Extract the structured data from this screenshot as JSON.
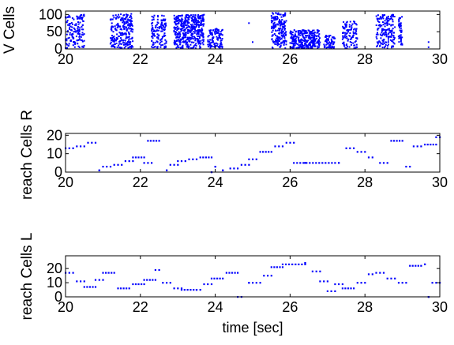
{
  "colors": {
    "marker": "#0000ff",
    "axis": "#000000",
    "background": "#ffffff"
  },
  "chart_data": [
    {
      "type": "scatter",
      "xlabel": "",
      "ylabel": "V Cells",
      "xlim": [
        20,
        30
      ],
      "ylim": [
        0,
        110
      ],
      "xticks": [
        "20",
        "22",
        "24",
        "26",
        "28",
        "30"
      ],
      "yticks": [
        "0",
        "50",
        "100"
      ],
      "grid": false,
      "clusters": [
        {
          "x": [
            20.0,
            20.5
          ],
          "y": [
            2,
            100
          ],
          "count": 140
        },
        {
          "x": [
            21.2,
            21.8
          ],
          "y": [
            2,
            102
          ],
          "count": 240
        },
        {
          "x": [
            22.3,
            22.7
          ],
          "y": [
            2,
            100
          ],
          "count": 130
        },
        {
          "x": [
            22.9,
            23.7
          ],
          "y": [
            2,
            100
          ],
          "count": 420
        },
        {
          "x": [
            23.8,
            24.2
          ],
          "y": [
            2,
            60
          ],
          "count": 110
        },
        {
          "x": [
            25.5,
            25.9
          ],
          "y": [
            2,
            105
          ],
          "count": 180
        },
        {
          "x": [
            26.0,
            26.8
          ],
          "y": [
            2,
            55
          ],
          "count": 280
        },
        {
          "x": [
            26.9,
            27.2
          ],
          "y": [
            2,
            40
          ],
          "count": 60
        },
        {
          "x": [
            27.4,
            27.8
          ],
          "y": [
            2,
            80
          ],
          "count": 100
        },
        {
          "x": [
            28.3,
            28.8
          ],
          "y": [
            2,
            100
          ],
          "count": 160
        },
        {
          "x": [
            28.9,
            29.0
          ],
          "y": [
            10,
            95
          ],
          "count": 40
        }
      ],
      "extra_points": [
        {
          "x": 24.9,
          "y": 75
        },
        {
          "x": 25.0,
          "y": 20
        },
        {
          "x": 29.7,
          "y": 20
        },
        {
          "x": 29.7,
          "y": 5
        }
      ]
    },
    {
      "type": "scatter",
      "xlabel": "",
      "ylabel": "reach Cells R",
      "xlim": [
        20,
        30
      ],
      "ylim": [
        0,
        21
      ],
      "xticks": [
        "20",
        "22",
        "24",
        "26",
        "28",
        "30"
      ],
      "yticks": [
        "0",
        "10",
        "20"
      ],
      "grid": false,
      "segments": [
        [
          20.0,
          20.2,
          13
        ],
        [
          20.3,
          20.5,
          14
        ],
        [
          20.6,
          20.8,
          16
        ],
        [
          20.9,
          20.9,
          1
        ],
        [
          21.0,
          21.2,
          3
        ],
        [
          21.3,
          21.5,
          4
        ],
        [
          21.6,
          21.8,
          6
        ],
        [
          21.8,
          22.1,
          8
        ],
        [
          22.1,
          22.3,
          5
        ],
        [
          22.2,
          22.5,
          17
        ],
        [
          22.7,
          22.7,
          1
        ],
        [
          22.8,
          23.0,
          4
        ],
        [
          23.0,
          23.2,
          6
        ],
        [
          23.3,
          23.5,
          7
        ],
        [
          23.6,
          23.9,
          8
        ],
        [
          23.9,
          23.9,
          0
        ],
        [
          24.0,
          24.0,
          3
        ],
        [
          24.2,
          24.2,
          1
        ],
        [
          24.4,
          24.6,
          2
        ],
        [
          24.7,
          24.9,
          4
        ],
        [
          24.9,
          25.1,
          7
        ],
        [
          25.2,
          25.5,
          11
        ],
        [
          25.6,
          25.8,
          14
        ],
        [
          25.9,
          26.1,
          16
        ],
        [
          26.1,
          27.2,
          5
        ],
        [
          26.4,
          26.4,
          5
        ],
        [
          27.3,
          27.3,
          5
        ],
        [
          27.5,
          27.7,
          13
        ],
        [
          27.8,
          28.0,
          11
        ],
        [
          28.1,
          28.2,
          8
        ],
        [
          28.4,
          28.6,
          5
        ],
        [
          28.7,
          29.0,
          17
        ],
        [
          29.1,
          29.2,
          3
        ],
        [
          29.3,
          29.5,
          14
        ],
        [
          29.6,
          29.9,
          15
        ],
        [
          29.9,
          30.0,
          19
        ]
      ]
    },
    {
      "type": "scatter",
      "xlabel": "time [sec]",
      "ylabel": "reach Cells L",
      "xlim": [
        20,
        30
      ],
      "ylim": [
        0,
        29
      ],
      "xticks": [
        "20",
        "22",
        "24",
        "26",
        "28",
        "30"
      ],
      "yticks": [
        "0",
        "10",
        "20"
      ],
      "grid": false,
      "segments": [
        [
          20.0,
          20.2,
          17
        ],
        [
          20.3,
          20.5,
          11
        ],
        [
          20.5,
          20.8,
          7
        ],
        [
          20.8,
          21.0,
          12
        ],
        [
          21.0,
          21.3,
          17
        ],
        [
          21.4,
          21.7,
          6
        ],
        [
          21.8,
          22.1,
          9
        ],
        [
          22.1,
          22.4,
          12
        ],
        [
          22.4,
          22.5,
          19
        ],
        [
          22.6,
          22.8,
          10
        ],
        [
          22.9,
          23.1,
          6
        ],
        [
          23.1,
          23.5,
          5
        ],
        [
          23.5,
          23.6,
          5
        ],
        [
          23.7,
          23.9,
          9
        ],
        [
          23.9,
          24.2,
          13
        ],
        [
          24.3,
          24.6,
          17
        ],
        [
          24.6,
          24.7,
          0
        ],
        [
          24.9,
          24.9,
          10
        ],
        [
          25.0,
          25.2,
          10
        ],
        [
          25.3,
          25.5,
          15
        ],
        [
          25.5,
          25.8,
          21
        ],
        [
          25.8,
          26.4,
          23
        ],
        [
          26.4,
          26.4,
          24
        ],
        [
          26.6,
          26.8,
          18
        ],
        [
          26.8,
          27.0,
          11
        ],
        [
          27.0,
          27.2,
          4
        ],
        [
          27.2,
          27.4,
          9
        ],
        [
          27.4,
          27.7,
          6
        ],
        [
          27.8,
          28.0,
          10
        ],
        [
          28.1,
          28.2,
          16
        ],
        [
          28.3,
          28.5,
          17
        ],
        [
          28.6,
          28.8,
          13
        ],
        [
          28.9,
          29.1,
          10
        ],
        [
          29.2,
          29.5,
          22
        ],
        [
          29.6,
          29.6,
          23
        ],
        [
          29.7,
          29.7,
          0
        ],
        [
          29.8,
          30.0,
          10
        ]
      ]
    }
  ]
}
